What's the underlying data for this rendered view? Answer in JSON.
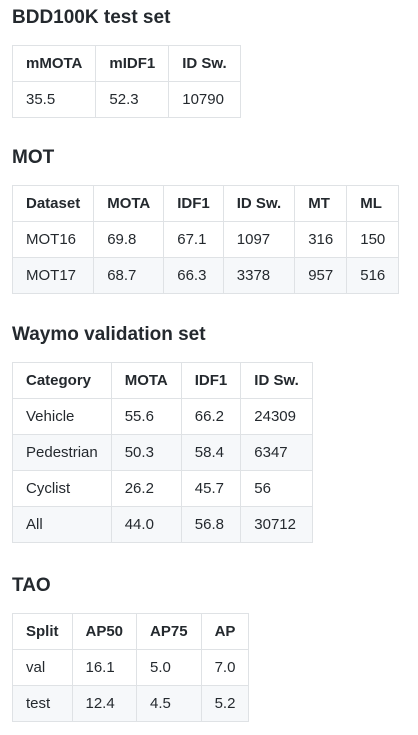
{
  "sections": [
    {
      "title": "BDD100K test set",
      "headers": [
        "mMOTA",
        "mIDF1",
        "ID Sw."
      ],
      "rows": [
        [
          "35.5",
          "52.3",
          "10790"
        ]
      ]
    },
    {
      "title": "MOT",
      "headers": [
        "Dataset",
        "MOTA",
        "IDF1",
        "ID Sw.",
        "MT",
        "ML"
      ],
      "rows": [
        [
          "MOT16",
          "69.8",
          "67.1",
          "1097",
          "316",
          "150"
        ],
        [
          "MOT17",
          "68.7",
          "66.3",
          "3378",
          "957",
          "516"
        ]
      ]
    },
    {
      "title": "Waymo validation set",
      "headers": [
        "Category",
        "MOTA",
        "IDF1",
        "ID Sw."
      ],
      "rows": [
        [
          "Vehicle",
          "55.6",
          "66.2",
          "24309"
        ],
        [
          "Pedestrian",
          "50.3",
          "58.4",
          "6347"
        ],
        [
          "Cyclist",
          "26.2",
          "45.7",
          "56"
        ],
        [
          "All",
          "44.0",
          "56.8",
          "30712"
        ]
      ]
    },
    {
      "title": "TAO",
      "headers": [
        "Split",
        "AP50",
        "AP75",
        "AP"
      ],
      "rows": [
        [
          "val",
          "16.1",
          "5.0",
          "7.0"
        ],
        [
          "test",
          "12.4",
          "4.5",
          "5.2"
        ]
      ]
    }
  ]
}
